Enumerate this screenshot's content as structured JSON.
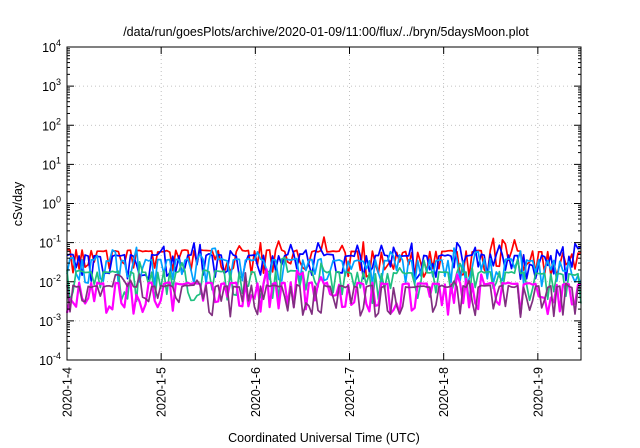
{
  "chart_data": {
    "type": "line",
    "title": "/data/run/goesPlots/archive/2020-01-09/11:00/flux/../bryn/5daysMoon.plot",
    "xlabel": "Coordinated Universal Time (UTC)",
    "ylabel": "cSv/day",
    "yscale": "log",
    "ylim": [
      0.0001,
      10000
    ],
    "xlim": [
      "2020-01-04T00:00",
      "2020-01-09T11:00"
    ],
    "grid": true,
    "x_ticks": [
      "2020-1-4",
      "2020-1-5",
      "2020-1-6",
      "2020-1-7",
      "2020-1-8",
      "2020-1-9"
    ],
    "y_ticks": [
      {
        "base": "10",
        "exp": "-4",
        "value": 0.0001
      },
      {
        "base": "10",
        "exp": "-3",
        "value": 0.001
      },
      {
        "base": "10",
        "exp": "-2",
        "value": 0.01
      },
      {
        "base": "10",
        "exp": "-1",
        "value": 0.1
      },
      {
        "base": "10",
        "exp": "0",
        "value": 1
      },
      {
        "base": "10",
        "exp": "1",
        "value": 10
      },
      {
        "base": "10",
        "exp": "2",
        "value": 100
      },
      {
        "base": "10",
        "exp": "3",
        "value": 1000
      },
      {
        "base": "10",
        "exp": "4",
        "value": 10000
      }
    ],
    "x": [
      "2020-01-04T00:00",
      "2020-01-04T06:00",
      "2020-01-04T12:00",
      "2020-01-04T18:00",
      "2020-01-05T00:00",
      "2020-01-05T06:00",
      "2020-01-05T12:00",
      "2020-01-05T18:00",
      "2020-01-06T00:00",
      "2020-01-06T06:00",
      "2020-01-06T12:00",
      "2020-01-06T18:00",
      "2020-01-07T00:00",
      "2020-01-07T06:00",
      "2020-01-07T12:00",
      "2020-01-07T18:00",
      "2020-01-08T00:00",
      "2020-01-08T06:00",
      "2020-01-08T12:00",
      "2020-01-08T18:00",
      "2020-01-09T00:00",
      "2020-01-09T06:00",
      "2020-01-09T11:00"
    ],
    "series": [
      {
        "color": "#ff0000",
        "values": [
          0.065,
          0.06,
          0.062,
          0.063,
          0.06,
          0.062,
          0.066,
          0.06,
          0.063,
          0.061,
          0.062,
          0.06,
          0.058,
          0.059,
          0.057,
          0.058,
          0.06,
          0.058,
          0.062,
          0.06,
          0.058,
          0.056,
          0.052
        ]
      },
      {
        "color": "#0000ff",
        "values": [
          0.05,
          0.045,
          0.047,
          0.046,
          0.048,
          0.047,
          0.05,
          0.046,
          0.048,
          0.047,
          0.05,
          0.048,
          0.045,
          0.046,
          0.045,
          0.046,
          0.048,
          0.046,
          0.049,
          0.047,
          0.046,
          0.045,
          0.042
        ]
      },
      {
        "color": "#00a0ff",
        "values": [
          0.04,
          0.035,
          0.036,
          0.035,
          0.036,
          0.037,
          0.038,
          0.036,
          0.037,
          0.036,
          0.038,
          0.036,
          0.034,
          0.035,
          0.034,
          0.035,
          0.036,
          0.035,
          0.037,
          0.036,
          0.035,
          0.034,
          0.032
        ]
      },
      {
        "color": "#20c080",
        "values": [
          0.02,
          0.017,
          0.018,
          0.017,
          0.018,
          0.018,
          0.019,
          0.018,
          0.018,
          0.018,
          0.019,
          0.018,
          0.017,
          0.017,
          0.016,
          0.017,
          0.018,
          0.017,
          0.018,
          0.017,
          0.017,
          0.016,
          0.015
        ]
      },
      {
        "color": "#ff00ff",
        "values": [
          0.01,
          0.009,
          0.009,
          0.009,
          0.0092,
          0.009,
          0.0095,
          0.009,
          0.0093,
          0.009,
          0.0095,
          0.009,
          0.0088,
          0.009,
          0.0087,
          0.0089,
          0.009,
          0.0088,
          0.0092,
          0.009,
          0.0088,
          0.0086,
          0.0085
        ]
      },
      {
        "color": "#803080",
        "values": [
          0.008,
          0.0075,
          0.0077,
          0.0076,
          0.0078,
          0.0077,
          0.008,
          0.0076,
          0.0078,
          0.0077,
          0.008,
          0.0077,
          0.0075,
          0.0076,
          0.0074,
          0.0075,
          0.0077,
          0.0075,
          0.0078,
          0.0076,
          0.0075,
          0.0074,
          0.0072
        ]
      }
    ]
  }
}
